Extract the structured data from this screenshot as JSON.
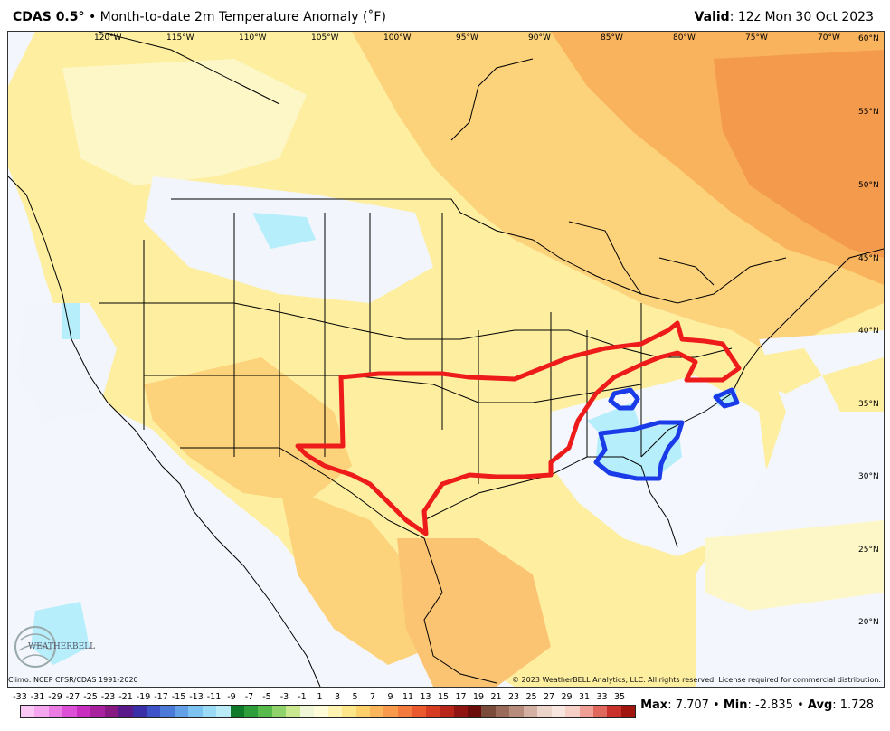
{
  "header": {
    "model": "CDAS 0.5",
    "deg": "°",
    "description": " • Month-to-date 2m Temperature Anomaly (˚F)",
    "valid_label": "Valid",
    "valid_value": ": 12z Mon 30 Oct 2023"
  },
  "lon_labels": [
    "120°W",
    "115°W",
    "110°W",
    "105°W",
    "100°W",
    "95°W",
    "90°W",
    "85°W",
    "80°W",
    "75°W",
    "70°W"
  ],
  "lat_labels": [
    "60°N",
    "55°N",
    "50°N",
    "45°N",
    "40°N",
    "35°N",
    "30°N",
    "25°N",
    "20°N"
  ],
  "logo": {
    "text": "WEATHERBELL"
  },
  "footer": {
    "climo": "Climo: NCEP CFSR/CDAS 1991-2020",
    "copyright": "© 2023 WeatherBELL Analytics, LLC. All rights reserved. License required for commercial distribution."
  },
  "scale": {
    "labels": [
      "-33",
      "-31",
      "-29",
      "-27",
      "-25",
      "-23",
      "-21",
      "-19",
      "-17",
      "-15",
      "-13",
      "-11",
      "-9",
      "-7",
      "-5",
      "-3",
      "-1",
      "1",
      "3",
      "5",
      "7",
      "9",
      "11",
      "13",
      "15",
      "17",
      "19",
      "21",
      "23",
      "25",
      "27",
      "29",
      "31",
      "33",
      "35"
    ],
    "colors": [
      "#f9c7f3",
      "#f4a6ee",
      "#ea7ce3",
      "#dd4fd6",
      "#c82ec0",
      "#a8229f",
      "#861a82",
      "#5a1a8a",
      "#3b2fa8",
      "#3f53c8",
      "#4b7ad8",
      "#63a0e6",
      "#7dc3f0",
      "#9adaf4",
      "#b9ecf6",
      "#0f7a2a",
      "#2e9e3a",
      "#59ba4c",
      "#8fd16a",
      "#c8e78f",
      "#eef6d6",
      "#fdfbd8",
      "#fef3b0",
      "#fde58a",
      "#fcd06a",
      "#fbb55a",
      "#f89a4c",
      "#f37b3d",
      "#ea5a2e",
      "#d63c22",
      "#b8261a",
      "#8e1512",
      "#6a0d0b",
      "#7a4a3a",
      "#9a6a5a",
      "#b88c7c",
      "#d4b0a2",
      "#ecd4ca",
      "#f7e6e0",
      "#f6cfc6",
      "#ef9f95",
      "#e0675c",
      "#c8322a",
      "#a1150f"
    ]
  },
  "stats": {
    "max_label": "Max",
    "max_value": ": 7.707 • ",
    "min_label": "Min",
    "min_value": ": -2.835 • ",
    "avg_label": "Avg",
    "avg_value": ": 1.728"
  }
}
